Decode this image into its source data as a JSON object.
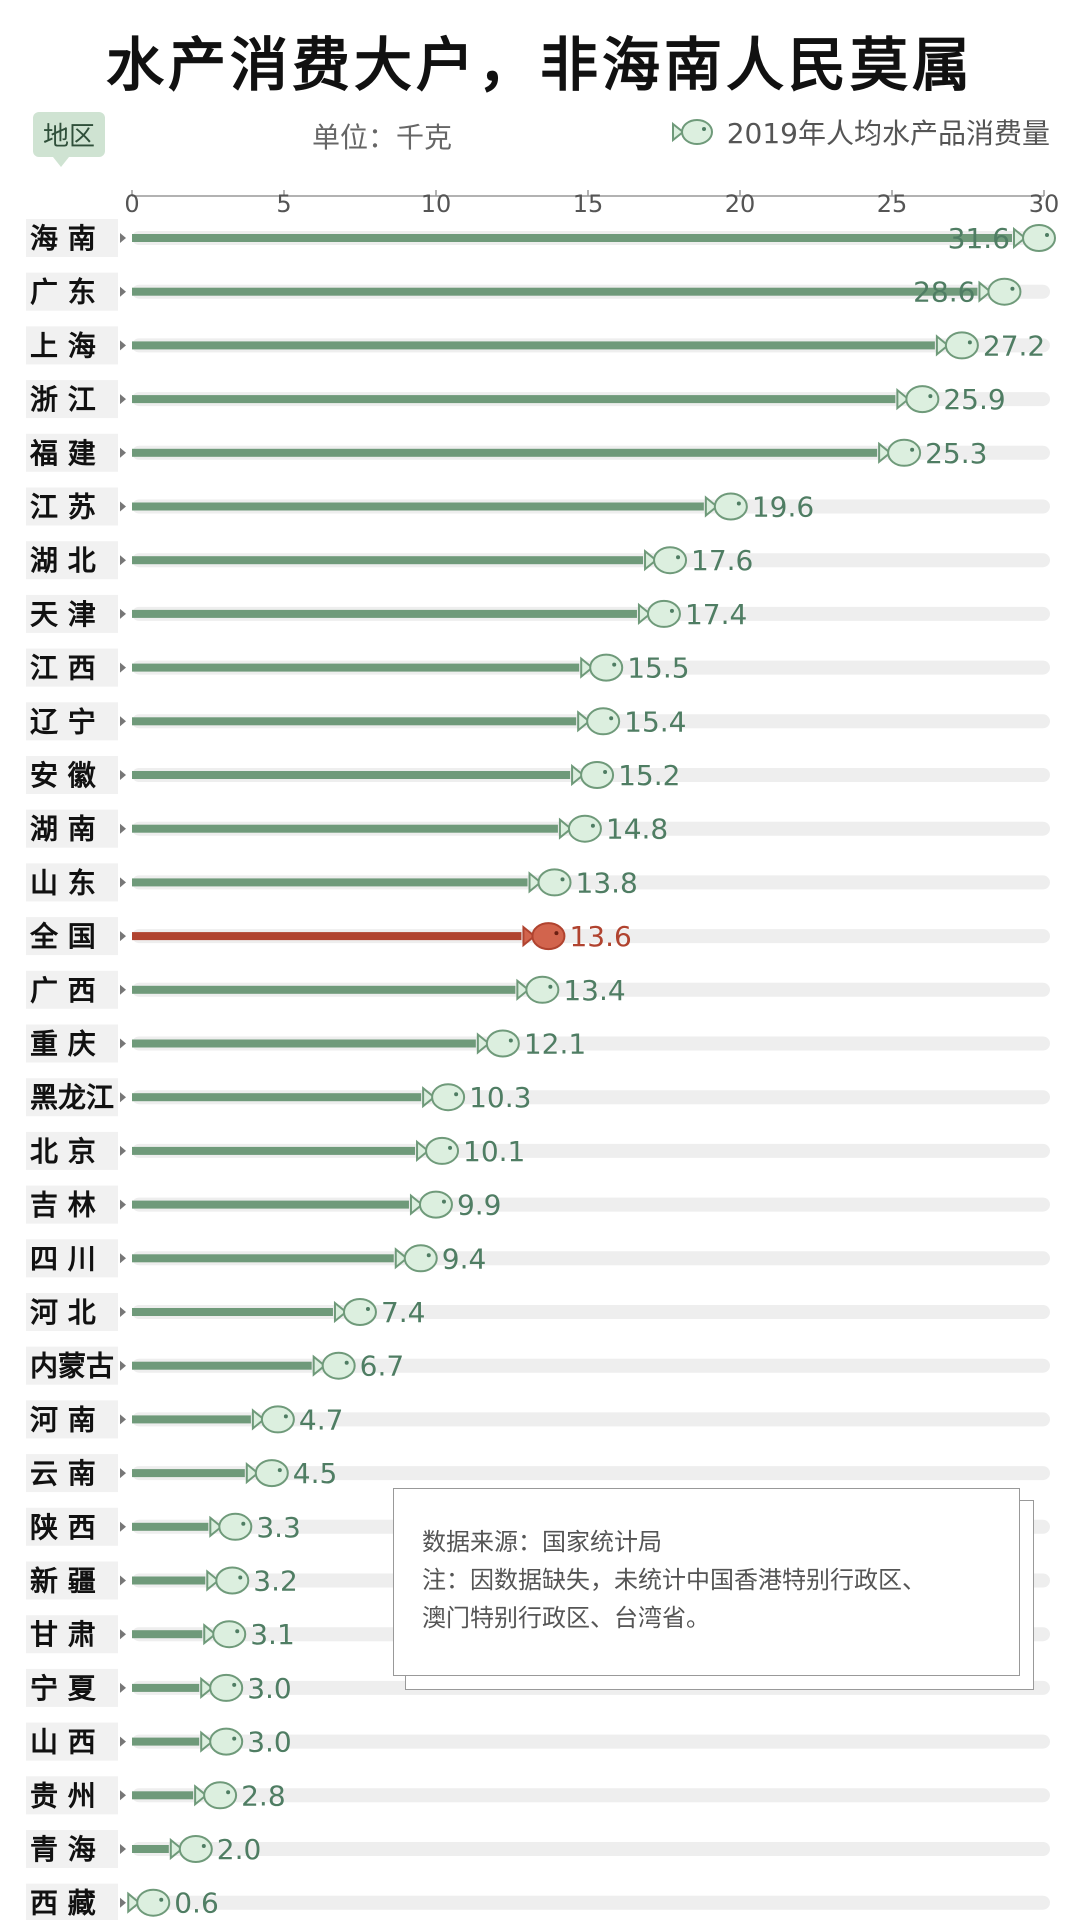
{
  "title": "水产消费大户，非海南人民莫属",
  "region_tag": "地区",
  "unit_label": "单位：千克",
  "legend": {
    "label": "2019年人均水产品消费量",
    "icon": "fish-icon"
  },
  "note": {
    "source": "数据来源：国家统计局",
    "line1": "注：因数据缺失，未统计中国香港特别行政区、",
    "line2": "澳门特别行政区、台湾省。"
  },
  "colors": {
    "bar": "#6f9a7a",
    "label": "#4f7d63",
    "highlight": "#b0432f",
    "track": "#eeeeee",
    "fish_fill": "#dcefdf"
  },
  "chart_data": {
    "type": "bar",
    "orientation": "horizontal",
    "xlim": [
      0,
      30
    ],
    "xticks": [
      0,
      5,
      10,
      15,
      20,
      25,
      30
    ],
    "categories": [
      "海 南",
      "广 东",
      "上 海",
      "浙 江",
      "福 建",
      "江 苏",
      "湖 北",
      "天 津",
      "江 西",
      "辽 宁",
      "安 徽",
      "湖 南",
      "山 东",
      "全 国",
      "广 西",
      "重 庆",
      "黑龙江",
      "北 京",
      "吉 林",
      "四 川",
      "河 北",
      "内蒙古",
      "河 南",
      "云 南",
      "陕 西",
      "新 疆",
      "甘 肃",
      "宁 夏",
      "山 西",
      "贵 州",
      "青 海",
      "西 藏"
    ],
    "values": [
      31.6,
      28.6,
      27.2,
      25.9,
      25.3,
      19.6,
      17.6,
      17.4,
      15.5,
      15.4,
      15.2,
      14.8,
      13.8,
      13.6,
      13.4,
      12.1,
      10.3,
      10.1,
      9.9,
      9.4,
      7.4,
      6.7,
      4.7,
      4.5,
      3.3,
      3.2,
      3.1,
      3.0,
      3.0,
      2.8,
      2.0,
      0.6
    ],
    "labels": [
      "31.6",
      "28.6",
      "27.2",
      "25.9",
      "25.3",
      "19.6",
      "17.6",
      "17.4",
      "15.5",
      "15.4",
      "15.2",
      "14.8",
      "13.8",
      "13.6",
      "13.4",
      "12.1",
      "10.3",
      "10.1",
      "9.9",
      "9.4",
      "7.4",
      "6.7",
      "4.7",
      "4.5",
      "3.3",
      "3.2",
      "3.1",
      "3.0",
      "3.0",
      "2.8",
      "2.0",
      "0.6"
    ],
    "highlight": "全 国"
  }
}
